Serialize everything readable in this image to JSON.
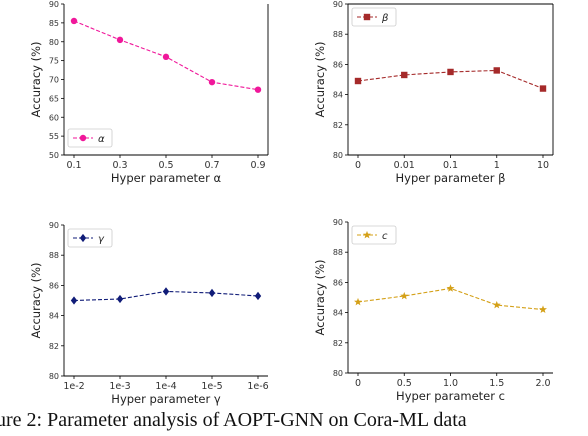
{
  "caption": "ure 2: Parameter analysis of AOPT-GNN on Cora-ML data",
  "chart_data": [
    {
      "type": "line",
      "categories": [
        "0.1",
        "0.3",
        "0.5",
        "0.7",
        "0.9"
      ],
      "series": [
        {
          "name": "α",
          "values": [
            85.5,
            80.5,
            76.0,
            69.3,
            67.3
          ],
          "color": "#f0179a",
          "marker": "circle"
        }
      ],
      "xlabel": "Hyper parameter α",
      "ylabel": "Accuracy (%)",
      "ylim": [
        50,
        90
      ],
      "yticks": [
        "50",
        "55",
        "60",
        "65",
        "70",
        "75",
        "80",
        "85",
        "90"
      ],
      "legend": "bottom-left"
    },
    {
      "type": "line",
      "categories": [
        "0",
        "0.01",
        "0.1",
        "1",
        "10"
      ],
      "series": [
        {
          "name": "β",
          "values": [
            84.9,
            85.3,
            85.5,
            85.6,
            84.4
          ],
          "color": "#a52a2a",
          "marker": "square"
        }
      ],
      "xlabel": "Hyper parameter β",
      "ylabel": "Accuracy (%)",
      "ylim": [
        80,
        90
      ],
      "yticks": [
        "80",
        "82",
        "84",
        "86",
        "88",
        "90"
      ],
      "legend": "top-left"
    },
    {
      "type": "line",
      "categories": [
        "1e-2",
        "1e-3",
        "1e-4",
        "1e-5",
        "1e-6"
      ],
      "series": [
        {
          "name": "γ",
          "values": [
            85.0,
            85.1,
            85.6,
            85.5,
            85.3
          ],
          "color": "#101c78",
          "marker": "diamond"
        }
      ],
      "xlabel": "Hyper parameter γ",
      "ylabel": "Accuracy (%)",
      "ylim": [
        80,
        90
      ],
      "yticks": [
        "80",
        "82",
        "84",
        "86",
        "88",
        "90"
      ],
      "legend": "top-left"
    },
    {
      "type": "line",
      "categories": [
        "0",
        "0.5",
        "1.0",
        "1.5",
        "2.0"
      ],
      "series": [
        {
          "name": "c",
          "values": [
            84.7,
            85.1,
            85.6,
            84.5,
            84.2
          ],
          "color": "#d4a017",
          "marker": "star"
        }
      ],
      "xlabel": "Hyper parameter c",
      "ylabel": "Accuracy (%)",
      "ylim": [
        80,
        90
      ],
      "yticks": [
        "80",
        "82",
        "84",
        "86",
        "88",
        "90"
      ],
      "legend": "top-left"
    }
  ]
}
